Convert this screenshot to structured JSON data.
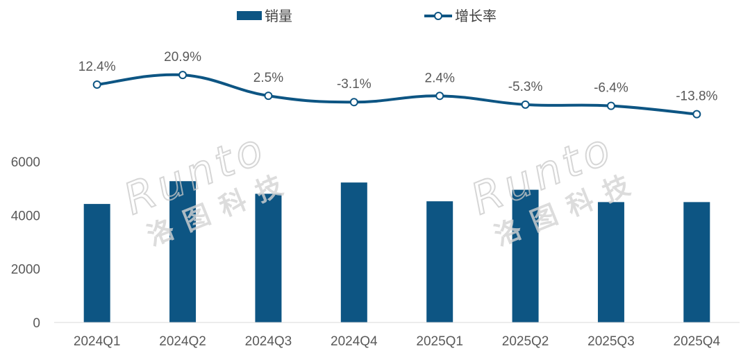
{
  "legend": {
    "bar_label": "销量",
    "line_label": "增长率"
  },
  "watermark": {
    "latin": "Runto",
    "cjk": "洛图科技"
  },
  "colors": {
    "bar": "#0d5583",
    "line": "#0d5583",
    "marker_fill": "#ffffff",
    "axis": "#d9d9d9",
    "text": "#595959"
  },
  "chart_data": {
    "type": "bar",
    "categories": [
      "2024Q1",
      "2024Q2",
      "2024Q3",
      "2024Q4",
      "2025Q1",
      "2025Q2",
      "2025Q3",
      "2025Q4"
    ],
    "series": [
      {
        "name": "销量",
        "type": "bar",
        "axis": "left",
        "values": [
          4420,
          5270,
          4800,
          5220,
          4520,
          4950,
          4490,
          4490
        ]
      },
      {
        "name": "增长率",
        "type": "line",
        "axis": "right-hidden",
        "values": [
          12.4,
          20.9,
          2.5,
          -3.1,
          2.4,
          -5.3,
          -6.4,
          -13.8
        ],
        "labels": [
          "12.4%",
          "20.9%",
          "2.5%",
          "-3.1%",
          "2.4%",
          "-5.3%",
          "-6.4%",
          "-13.8%"
        ]
      }
    ],
    "y_ticks": [
      0,
      2000,
      4000,
      6000
    ],
    "ylim": [
      0,
      6000
    ],
    "y2lim": [
      -14,
      21
    ],
    "grid": false,
    "legend_position": "top-center"
  }
}
